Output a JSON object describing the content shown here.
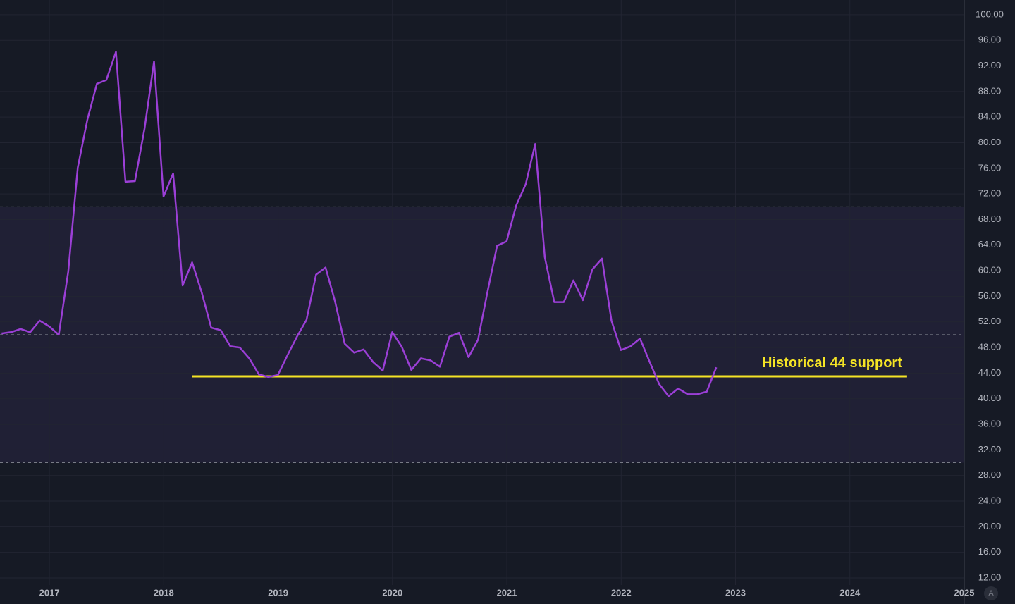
{
  "chart_data": {
    "type": "line",
    "x": [
      2016.582,
      2016.665,
      2016.748,
      2016.832,
      2016.915,
      2016.998,
      2017.082,
      2017.165,
      2017.248,
      2017.332,
      2017.415,
      2017.498,
      2017.582,
      2017.665,
      2017.748,
      2017.832,
      2017.915,
      2017.998,
      2018.082,
      2018.165,
      2018.248,
      2018.332,
      2018.415,
      2018.498,
      2018.582,
      2018.665,
      2018.748,
      2018.832,
      2018.915,
      2018.998,
      2019.082,
      2019.165,
      2019.248,
      2019.332,
      2019.415,
      2019.498,
      2019.582,
      2019.665,
      2019.748,
      2019.832,
      2019.915,
      2019.998,
      2020.082,
      2020.165,
      2020.248,
      2020.332,
      2020.415,
      2020.498,
      2020.582,
      2020.665,
      2020.748,
      2020.832,
      2020.915,
      2020.998,
      2021.082,
      2021.165,
      2021.248,
      2021.332,
      2021.415,
      2021.498,
      2021.582,
      2021.665,
      2021.748,
      2021.832,
      2021.915,
      2021.998,
      2022.082,
      2022.165,
      2022.248,
      2022.332,
      2022.415,
      2022.498,
      2022.582,
      2022.665,
      2022.748,
      2022.832
    ],
    "series": [
      {
        "color": "#9b3fd6",
        "values": [
          50.2,
          50.4,
          50.9,
          50.4,
          52.2,
          51.3,
          50.0,
          59.9,
          76.1,
          83.6,
          89.2,
          89.8,
          94.2,
          73.9,
          74.0,
          82.2,
          92.7,
          71.6,
          75.2,
          57.7,
          61.3,
          56.6,
          51.1,
          50.7,
          48.2,
          48.0,
          46.3,
          43.8,
          43.4,
          43.7,
          46.8,
          49.7,
          52.3,
          59.4,
          60.5,
          55.2,
          48.6,
          47.2,
          47.7,
          45.7,
          44.4,
          50.4,
          48.1,
          44.5,
          46.3,
          46.0,
          45.0,
          49.7,
          50.3,
          46.5,
          49.2,
          56.8,
          63.9,
          64.6,
          70.2,
          73.5,
          79.8,
          62.1,
          55.1,
          55.1,
          58.5,
          55.4,
          60.2,
          61.9,
          52.2,
          47.6,
          48.2,
          49.4,
          45.8,
          42.3,
          40.4,
          41.6,
          40.7,
          40.7,
          41.1,
          44.9
        ]
      }
    ],
    "xlim": [
      2016.568,
      2025.0
    ],
    "xticks": [
      2017,
      2018,
      2019,
      2020,
      2021,
      2022,
      2023,
      2024,
      2025
    ],
    "ylim": [
      10.9,
      102.3
    ],
    "yticks": [
      {
        "value": 12,
        "label": "12.00"
      },
      {
        "value": 16,
        "label": "16.00"
      },
      {
        "value": 20,
        "label": "20.00"
      },
      {
        "value": 24,
        "label": "24.00"
      },
      {
        "value": 28,
        "label": "28.00"
      },
      {
        "value": 32,
        "label": "32.00"
      },
      {
        "value": 36,
        "label": "36.00"
      },
      {
        "value": 40,
        "label": "40.00"
      },
      {
        "value": 44,
        "label": "44.00"
      },
      {
        "value": 48,
        "label": "48.00"
      },
      {
        "value": 52,
        "label": "52.00"
      },
      {
        "value": 56,
        "label": "56.00"
      },
      {
        "value": 60,
        "label": "60.00"
      },
      {
        "value": 64,
        "label": "64.00"
      },
      {
        "value": 68,
        "label": "68.00"
      },
      {
        "value": 72,
        "label": "72.00"
      },
      {
        "value": 76,
        "label": "76.00"
      },
      {
        "value": 80,
        "label": "80.00"
      },
      {
        "value": 84,
        "label": "84.00"
      },
      {
        "value": 88,
        "label": "88.00"
      },
      {
        "value": 92,
        "label": "92.00"
      },
      {
        "value": 96,
        "label": "96.00"
      },
      {
        "value": 100,
        "label": "100.00"
      }
    ],
    "grid": true,
    "bands": {
      "upper": 70,
      "middle": 50,
      "lower": 30,
      "fill": "#7e57c2"
    },
    "support": {
      "value": 43.5,
      "x": [
        2018.25,
        2024.5
      ],
      "color": "#f5e425",
      "label": "Historical 44 support"
    }
  },
  "ui": {
    "auto_button": "A"
  }
}
